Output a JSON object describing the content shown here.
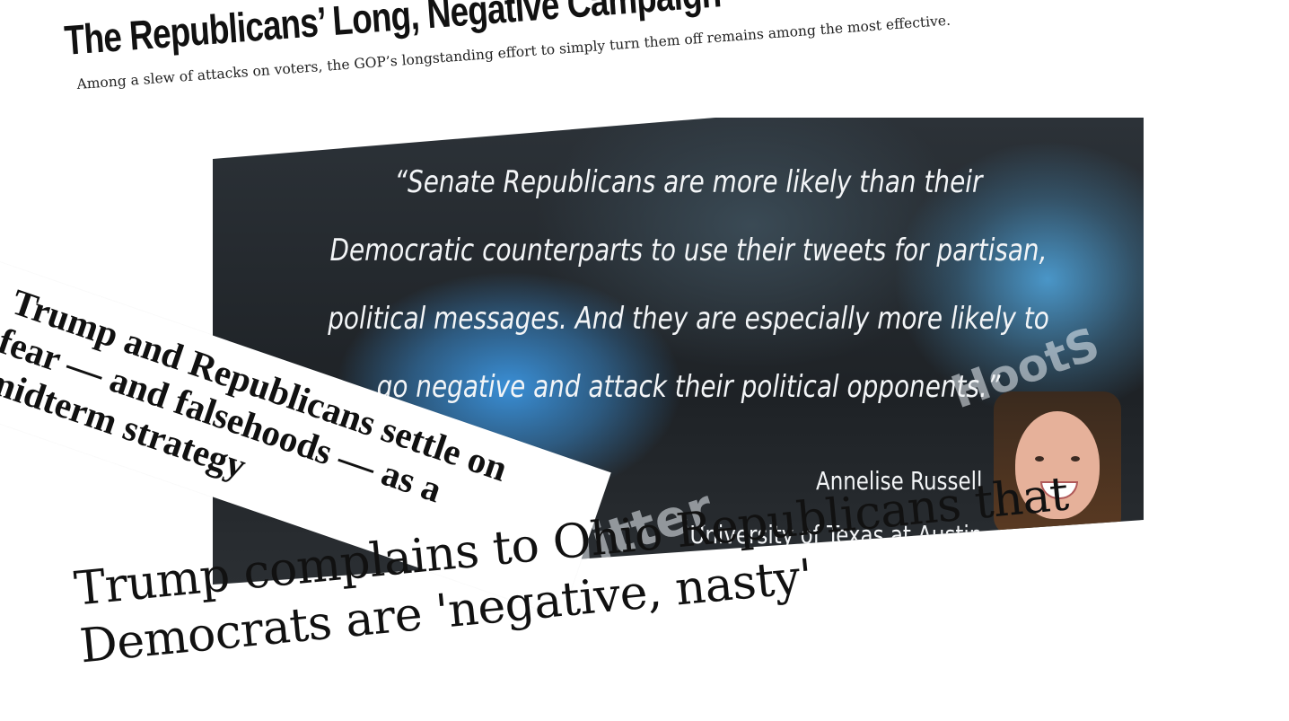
{
  "headline1": {
    "title": "The Republicans’ Long, Negative Campaign",
    "subtitle": "Among a slew of attacks on voters, the GOP’s longstanding effort to simply turn them off remains among the most effective."
  },
  "quote_card": {
    "quote": "“Senate Republicans are more likely than their Democratic counterparts to use their tweets for partisan, political messages.  And they are especially more likely to go negative and attack their political opponents.”",
    "author_name": "Annelise Russell",
    "author_affiliation": "University of Texas at Austin",
    "background_words": [
      "witter",
      "HootS"
    ]
  },
  "headline2": {
    "title": "Trump and Republicans settle on fear — and falsehoods — as a midterm strategy"
  },
  "headline3": {
    "title": "Trump complains to Ohio Republicans that Democrats are 'negative, nasty'"
  }
}
